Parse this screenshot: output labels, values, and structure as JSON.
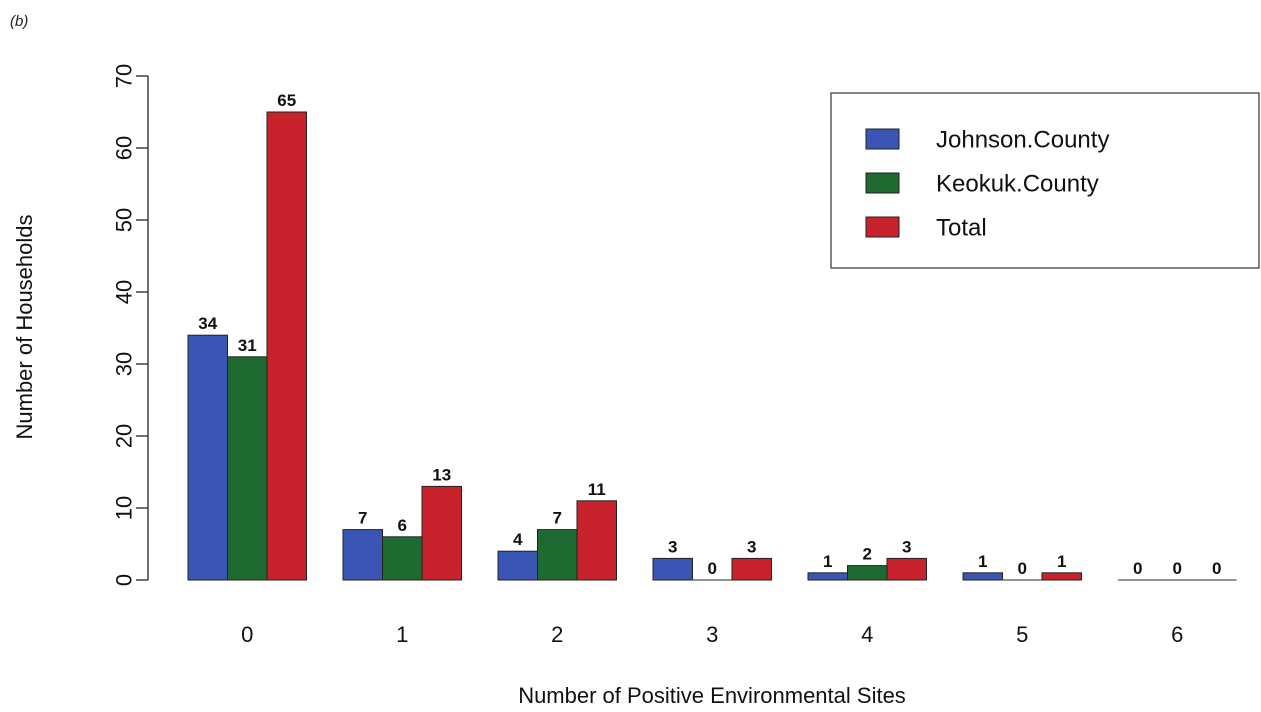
{
  "panel_label": "(b)",
  "chart_data": {
    "type": "bar",
    "categories": [
      "0",
      "1",
      "2",
      "3",
      "4",
      "5",
      "6"
    ],
    "series": [
      {
        "name": "Johnson.County",
        "color": "#3a55b4",
        "values": [
          34,
          7,
          4,
          3,
          1,
          1,
          0
        ]
      },
      {
        "name": "Keokuk.County",
        "color": "#1e6a30",
        "values": [
          31,
          6,
          7,
          0,
          2,
          0,
          0
        ]
      },
      {
        "name": "Total",
        "color": "#c8232c",
        "values": [
          65,
          13,
          11,
          3,
          3,
          1,
          0
        ]
      }
    ],
    "title": "",
    "xlabel": "Number of Positive Environmental Sites",
    "ylabel": "Number of Households",
    "ylim": [
      0,
      70
    ],
    "yticks": [
      0,
      10,
      20,
      30,
      40,
      50,
      60,
      70
    ],
    "data_labels": true,
    "grid": false,
    "legend": "top-right"
  }
}
